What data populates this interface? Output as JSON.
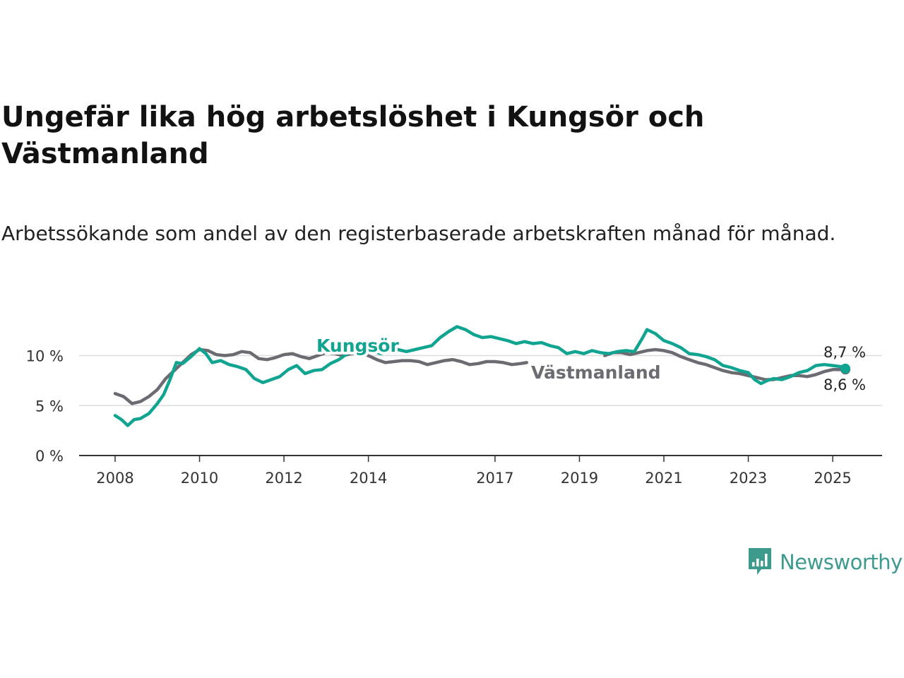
{
  "title": "Ungefär lika hög arbetslöshet i Kungsör och Västmanland",
  "subtitle": "Arbetssökande som andel av den registerbaserade arbetskraften månad för månad.",
  "brand": {
    "name": "Newsworthy",
    "color": "#3d9b8e"
  },
  "chart_data": {
    "type": "line",
    "xlim": [
      2008,
      2025.6
    ],
    "ylim": [
      0,
      13
    ],
    "x_ticks": [
      2008,
      2010,
      2012,
      2014,
      2017,
      2019,
      2021,
      2023,
      2025
    ],
    "y_ticks": [
      {
        "value": 0,
        "label": "0 %"
      },
      {
        "value": 5,
        "label": "5 %"
      },
      {
        "value": 10,
        "label": "10 %"
      }
    ],
    "grid": true,
    "series": [
      {
        "name": "Västmanland",
        "color": "#6b6b72",
        "end_label": "8,6 %",
        "points": [
          [
            2008,
            6.2
          ],
          [
            2008.2,
            5.9
          ],
          [
            2008.4,
            5.2
          ],
          [
            2008.6,
            5.4
          ],
          [
            2008.8,
            5.9
          ],
          [
            2009,
            6.6
          ],
          [
            2009.2,
            7.7
          ],
          [
            2009.4,
            8.5
          ],
          [
            2009.6,
            9.3
          ],
          [
            2009.8,
            10.1
          ],
          [
            2010,
            10.6
          ],
          [
            2010.2,
            10.5
          ],
          [
            2010.4,
            10.1
          ],
          [
            2010.6,
            10.0
          ],
          [
            2010.8,
            10.1
          ],
          [
            2011,
            10.4
          ],
          [
            2011.2,
            10.3
          ],
          [
            2011.4,
            9.7
          ],
          [
            2011.6,
            9.6
          ],
          [
            2011.8,
            9.8
          ],
          [
            2012,
            10.1
          ],
          [
            2012.2,
            10.2
          ],
          [
            2012.4,
            9.9
          ],
          [
            2012.6,
            9.7
          ],
          [
            2012.8,
            10.0
          ],
          [
            2013,
            10.3
          ],
          [
            2013.2,
            10.2
          ],
          [
            2013.4,
            10.0
          ],
          [
            2013.6,
            10.2
          ],
          [
            2013.8,
            10.3
          ],
          [
            2014,
            10.0
          ],
          [
            2014.2,
            9.6
          ],
          [
            2014.4,
            9.3
          ],
          [
            2014.6,
            9.4
          ],
          [
            2014.8,
            9.5
          ],
          [
            2015,
            9.5
          ],
          [
            2015.2,
            9.4
          ],
          [
            2015.4,
            9.1
          ],
          [
            2015.6,
            9.3
          ],
          [
            2015.8,
            9.5
          ],
          [
            2016,
            9.6
          ],
          [
            2016.2,
            9.4
          ],
          [
            2016.4,
            9.1
          ],
          [
            2016.6,
            9.2
          ],
          [
            2016.8,
            9.4
          ],
          [
            2017,
            9.4
          ],
          [
            2017.2,
            9.3
          ],
          [
            2017.4,
            9.1
          ],
          [
            2017.6,
            9.2
          ],
          [
            2017.75,
            9.3
          ],
          [
            2019.6,
            10.0
          ],
          [
            2019.8,
            10.3
          ],
          [
            2020,
            10.3
          ],
          [
            2020.2,
            10.1
          ],
          [
            2020.4,
            10.3
          ],
          [
            2020.6,
            10.5
          ],
          [
            2020.8,
            10.6
          ],
          [
            2021,
            10.5
          ],
          [
            2021.2,
            10.3
          ],
          [
            2021.4,
            9.9
          ],
          [
            2021.6,
            9.6
          ],
          [
            2021.8,
            9.3
          ],
          [
            2022,
            9.1
          ],
          [
            2022.2,
            8.8
          ],
          [
            2022.4,
            8.5
          ],
          [
            2022.6,
            8.3
          ],
          [
            2022.8,
            8.2
          ],
          [
            2023,
            8.0
          ],
          [
            2023.2,
            7.8
          ],
          [
            2023.4,
            7.6
          ],
          [
            2023.6,
            7.6
          ],
          [
            2023.8,
            7.8
          ],
          [
            2024,
            8.0
          ],
          [
            2024.2,
            8.0
          ],
          [
            2024.4,
            7.9
          ],
          [
            2024.6,
            8.1
          ],
          [
            2024.8,
            8.4
          ],
          [
            2025,
            8.6
          ],
          [
            2025.2,
            8.6
          ],
          [
            2025.3,
            8.6
          ]
        ]
      },
      {
        "name": "Kungsör",
        "color": "#11a591",
        "end_label": "8,7 %",
        "points": [
          [
            2008,
            4.0
          ],
          [
            2008.15,
            3.6
          ],
          [
            2008.3,
            3.0
          ],
          [
            2008.45,
            3.6
          ],
          [
            2008.6,
            3.7
          ],
          [
            2008.8,
            4.2
          ],
          [
            2009,
            5.2
          ],
          [
            2009.15,
            6.1
          ],
          [
            2009.3,
            7.6
          ],
          [
            2009.45,
            9.3
          ],
          [
            2009.6,
            9.2
          ],
          [
            2009.8,
            9.9
          ],
          [
            2010,
            10.7
          ],
          [
            2010.15,
            10.2
          ],
          [
            2010.3,
            9.3
          ],
          [
            2010.5,
            9.5
          ],
          [
            2010.7,
            9.1
          ],
          [
            2010.9,
            8.9
          ],
          [
            2011.1,
            8.6
          ],
          [
            2011.3,
            7.7
          ],
          [
            2011.5,
            7.3
          ],
          [
            2011.7,
            7.6
          ],
          [
            2011.9,
            7.9
          ],
          [
            2012.1,
            8.6
          ],
          [
            2012.3,
            9.0
          ],
          [
            2012.5,
            8.2
          ],
          [
            2012.7,
            8.5
          ],
          [
            2012.9,
            8.6
          ],
          [
            2013.1,
            9.2
          ],
          [
            2013.3,
            9.6
          ],
          [
            2013.5,
            10.2
          ],
          [
            2013.7,
            10.4
          ],
          [
            2013.9,
            10.6
          ],
          [
            2014.1,
            10.4
          ],
          [
            2014.3,
            10.2
          ],
          [
            2014.5,
            10.4
          ],
          [
            2014.7,
            10.6
          ],
          [
            2014.9,
            10.4
          ],
          [
            2015.1,
            10.6
          ],
          [
            2015.3,
            10.8
          ],
          [
            2015.5,
            11.0
          ],
          [
            2015.7,
            11.8
          ],
          [
            2015.9,
            12.4
          ],
          [
            2016.1,
            12.9
          ],
          [
            2016.3,
            12.6
          ],
          [
            2016.5,
            12.1
          ],
          [
            2016.7,
            11.8
          ],
          [
            2016.9,
            11.9
          ],
          [
            2017.1,
            11.7
          ],
          [
            2017.3,
            11.5
          ],
          [
            2017.5,
            11.2
          ],
          [
            2017.7,
            11.4
          ],
          [
            2017.9,
            11.2
          ],
          [
            2018.1,
            11.3
          ],
          [
            2018.3,
            11.0
          ],
          [
            2018.5,
            10.8
          ],
          [
            2018.7,
            10.2
          ],
          [
            2018.9,
            10.4
          ],
          [
            2019.1,
            10.2
          ],
          [
            2019.3,
            10.5
          ],
          [
            2019.5,
            10.3
          ],
          [
            2019.7,
            10.2
          ],
          [
            2019.9,
            10.4
          ],
          [
            2020.1,
            10.5
          ],
          [
            2020.3,
            10.4
          ],
          [
            2020.5,
            11.8
          ],
          [
            2020.6,
            12.6
          ],
          [
            2020.8,
            12.2
          ],
          [
            2021,
            11.5
          ],
          [
            2021.2,
            11.2
          ],
          [
            2021.4,
            10.8
          ],
          [
            2021.6,
            10.2
          ],
          [
            2021.8,
            10.1
          ],
          [
            2022,
            9.9
          ],
          [
            2022.2,
            9.6
          ],
          [
            2022.4,
            9.0
          ],
          [
            2022.6,
            8.8
          ],
          [
            2022.8,
            8.5
          ],
          [
            2023,
            8.3
          ],
          [
            2023.15,
            7.6
          ],
          [
            2023.3,
            7.2
          ],
          [
            2023.45,
            7.5
          ],
          [
            2023.6,
            7.7
          ],
          [
            2023.8,
            7.6
          ],
          [
            2024,
            7.9
          ],
          [
            2024.2,
            8.3
          ],
          [
            2024.4,
            8.5
          ],
          [
            2024.6,
            9.0
          ],
          [
            2024.8,
            9.1
          ],
          [
            2025,
            9.0
          ],
          [
            2025.2,
            8.9
          ],
          [
            2025.3,
            8.7
          ]
        ]
      }
    ]
  }
}
